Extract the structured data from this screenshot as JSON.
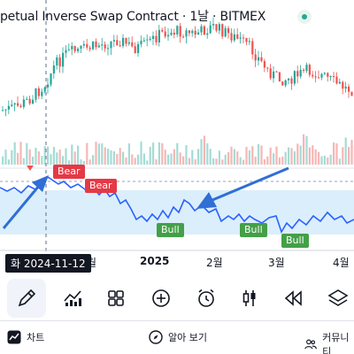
{
  "header": {
    "title": "petual Inverse Swap Contract · 1날 · BITMEX"
  },
  "signals": {
    "bear_1": "Bear",
    "bear_2": "Bear",
    "bull_1": "Bull",
    "bull_2": "Bull",
    "bull_3": "Bull"
  },
  "x_axis": {
    "crosshair_label": "화 2024-11-12",
    "label_dec_partial": "월",
    "label_2025": "2025",
    "label_feb": "2월",
    "label_mar": "3월",
    "label_apr": "4월"
  },
  "toolbar": {
    "tools": [
      "pencil-tool",
      "indicators-tool",
      "layouts-tool",
      "add-tool",
      "alert-tool",
      "candles-tool",
      "replay-tool",
      "layers-tool"
    ],
    "active": "pencil-tool"
  },
  "bottom_nav": {
    "chart_label": "차트",
    "explore_label": "알아 보기",
    "community_label": "커뮤니티"
  },
  "colors": {
    "up": "#26a69a",
    "down": "#ef5350",
    "line": "#2962ff",
    "band": "#dbeefb",
    "arrow": "#2f6fd6"
  }
}
